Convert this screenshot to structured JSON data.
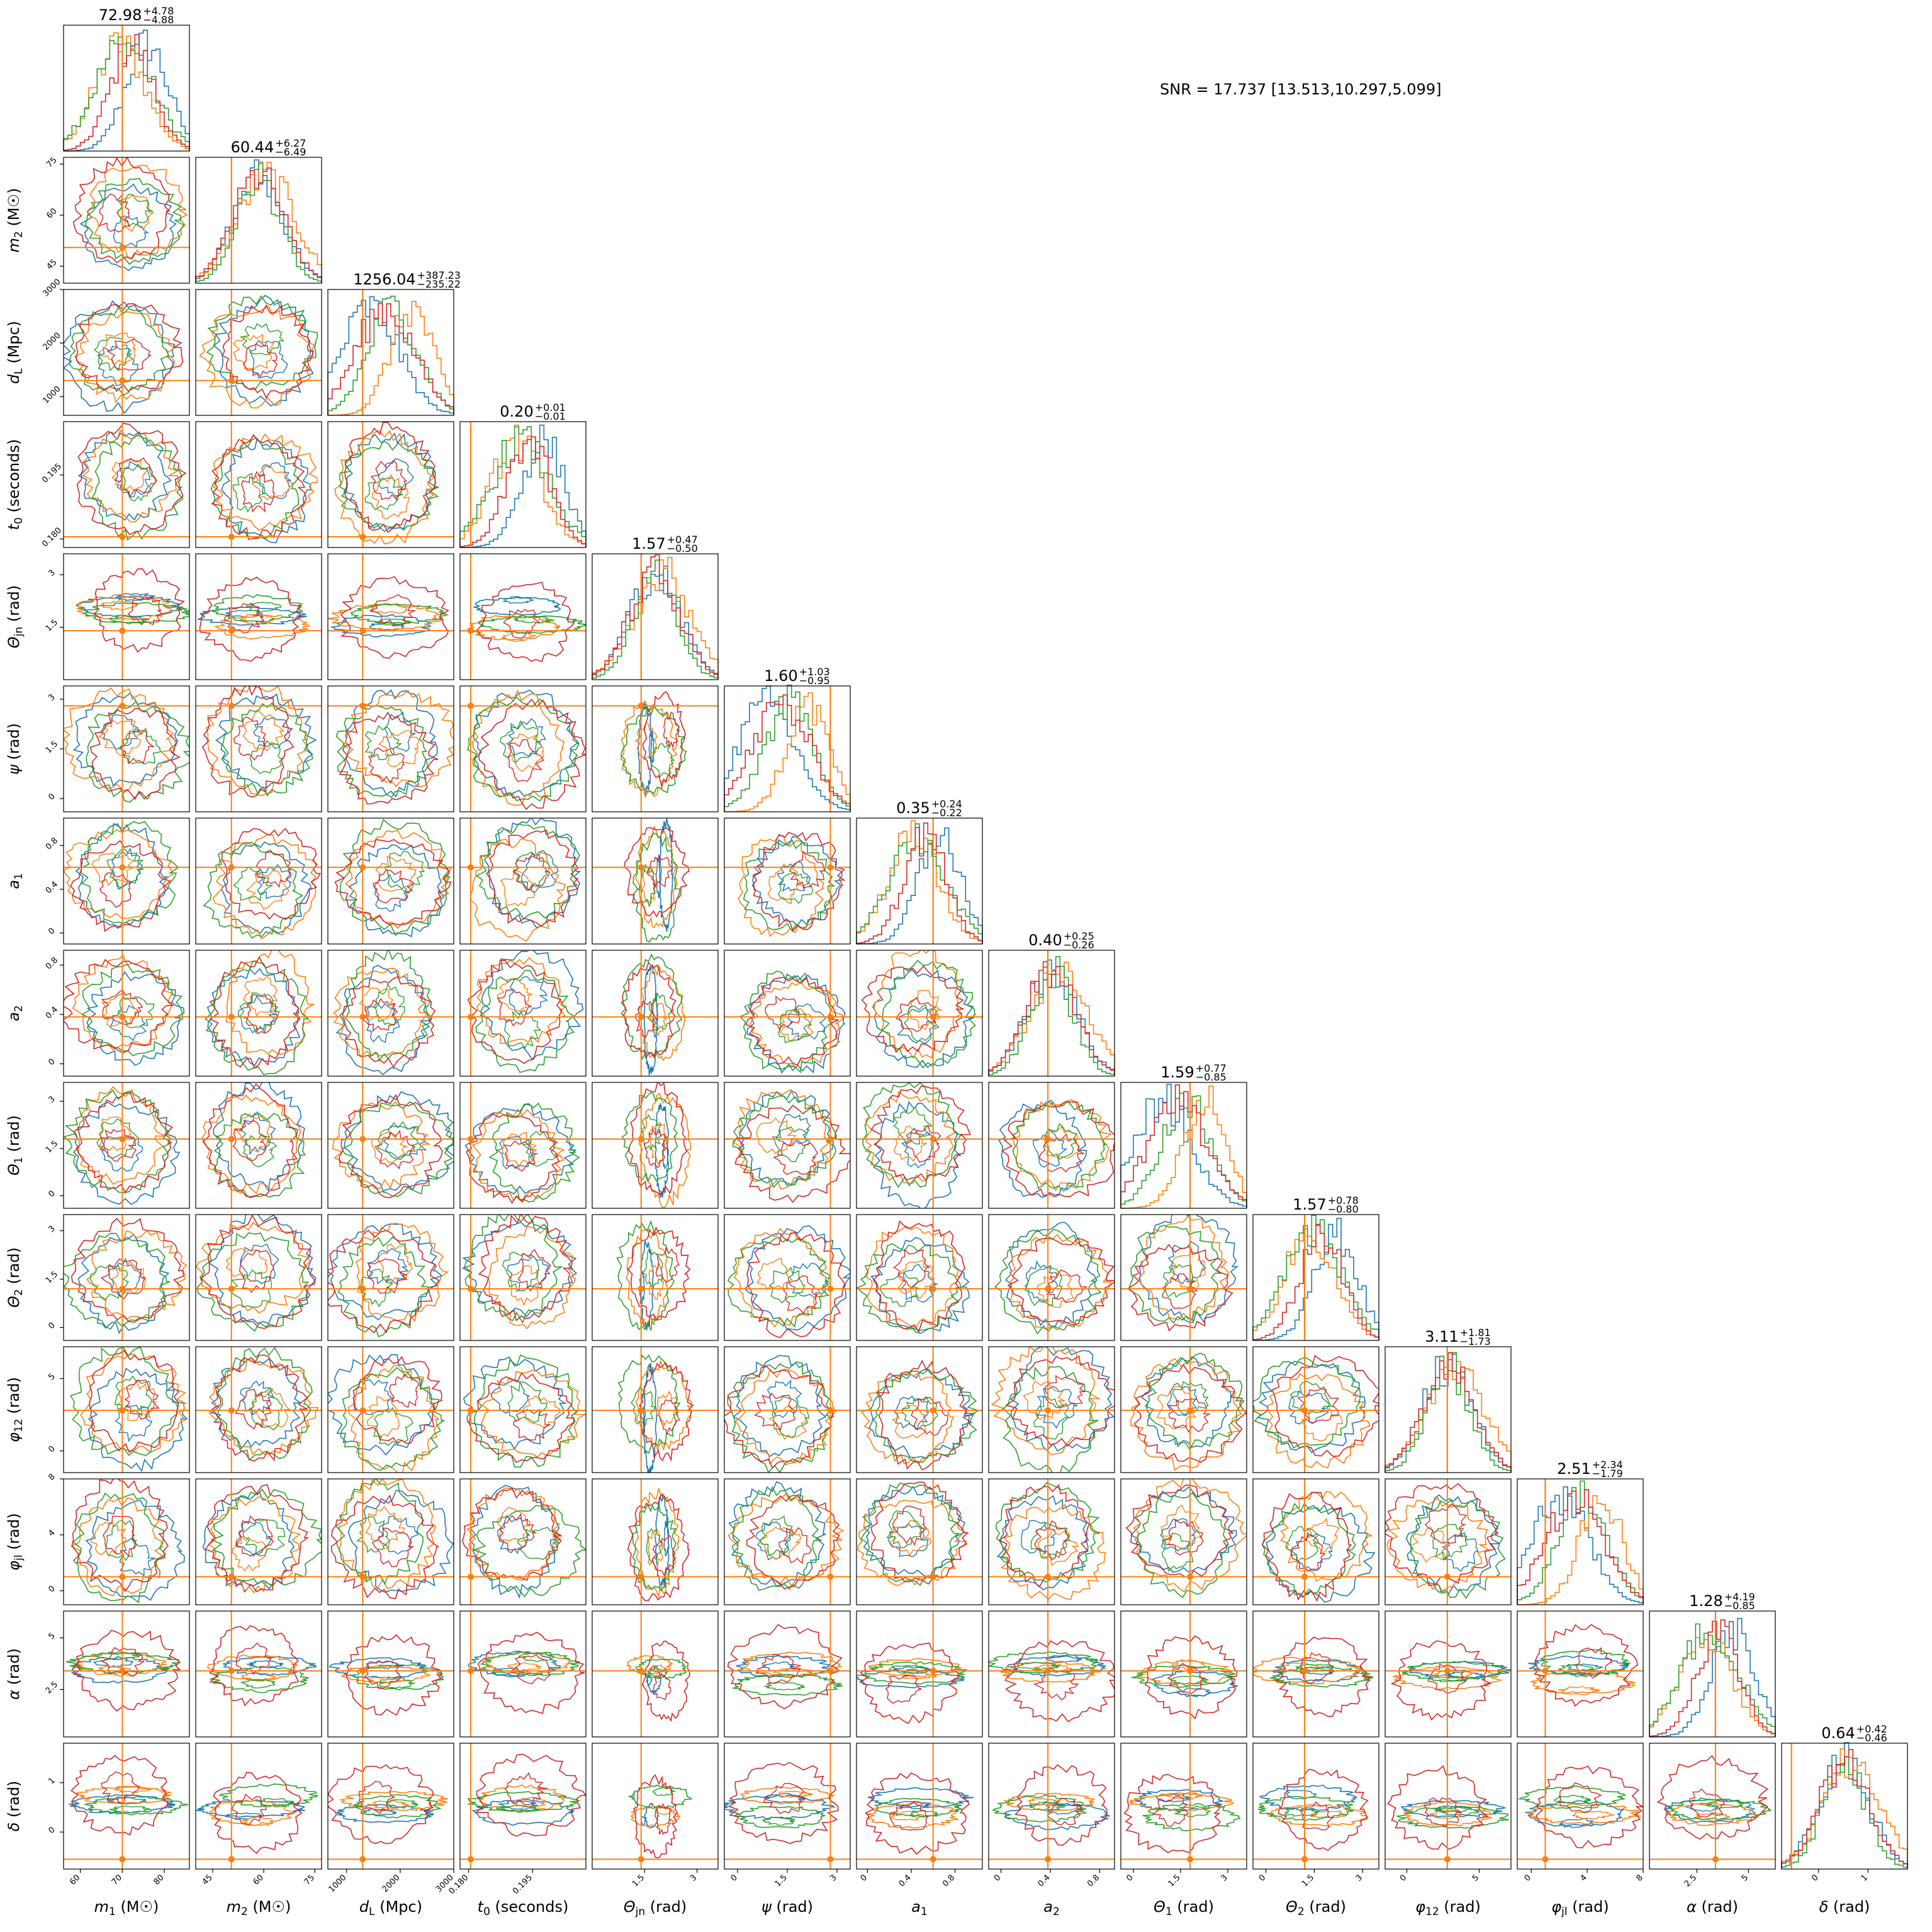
{
  "snr_text": "SNR = 17.737 [13.513,10.297,5.099]",
  "colors": {
    "blue": "#1f77b4",
    "orange": "#ff7f0e",
    "green": "#2ca02c",
    "red": "#d62728",
    "truth": "#ff7f0e"
  },
  "chart_data": {
    "type": "corner",
    "series_count": 4,
    "parameters": [
      {
        "label": "m₁ (M☉)",
        "symbol": "m",
        "sub": "1",
        "unit": "(M☉)",
        "range": [
          56,
          86
        ],
        "ticks": [
          60,
          70,
          80
        ],
        "truth": 70.0,
        "title": {
          "median": "72.98",
          "plus": "+4.78",
          "minus": "−4.88"
        }
      },
      {
        "label": "m₂ (M☉)",
        "symbol": "m",
        "sub": "2",
        "unit": "(M☉)",
        "range": [
          40,
          77
        ],
        "ticks": [
          45,
          60,
          75
        ],
        "truth": 50.5,
        "title": {
          "median": "60.44",
          "plus": "+6.27",
          "minus": "−6.49"
        }
      },
      {
        "label": "d_L (Mpc)",
        "symbol": "d",
        "sub": "L",
        "unit": "(Mpc)",
        "range": [
          650,
          3000
        ],
        "ticks": [
          1000,
          2000,
          3000
        ],
        "truth": 1300,
        "title": {
          "median": "1256.04",
          "plus": "+387.23",
          "minus": "−235.22"
        }
      },
      {
        "label": "t₀ (seconds)",
        "symbol": "t",
        "sub": "0",
        "unit": "(seconds)",
        "range": [
          0.178,
          0.2075
        ],
        "ticks": [
          0.18,
          0.195
        ],
        "tick_labels": [
          "0.180",
          "0.195"
        ],
        "truth": 0.1805,
        "title": {
          "median": "0.20",
          "plus": "+0.01",
          "minus": "−0.01"
        }
      },
      {
        "label": "Θ_jn (rad)",
        "symbol": "Θ",
        "sub": "jn",
        "unit": "(rad)",
        "range": [
          0,
          3.6
        ],
        "ticks": [
          1.5,
          3.0
        ],
        "truth": 1.4,
        "title": {
          "median": "1.57",
          "plus": "+0.47",
          "minus": "−0.50"
        }
      },
      {
        "label": "ψ (rad)",
        "symbol": "ψ",
        "sub": "",
        "unit": "(rad)",
        "range": [
          -0.4,
          3.4
        ],
        "ticks": [
          0.0,
          1.5,
          3.0
        ],
        "truth": 2.8,
        "title": {
          "median": "1.60",
          "plus": "+1.03",
          "minus": "−0.95"
        }
      },
      {
        "label": "a₁",
        "symbol": "a",
        "sub": "1",
        "unit": "",
        "range": [
          -0.1,
          1.05
        ],
        "ticks": [
          0.0,
          0.4,
          0.8
        ],
        "truth": 0.6,
        "title": {
          "median": "0.35",
          "plus": "+0.24",
          "minus": "−0.22"
        }
      },
      {
        "label": "a₂",
        "symbol": "a",
        "sub": "2",
        "unit": "",
        "range": [
          -0.1,
          0.92
        ],
        "ticks": [
          0.0,
          0.4,
          0.8
        ],
        "truth": 0.38,
        "title": {
          "median": "0.40",
          "plus": "+0.25",
          "minus": "−0.26"
        }
      },
      {
        "label": "Θ₁ (rad)",
        "symbol": "Θ",
        "sub": "1",
        "unit": "(rad)",
        "range": [
          -0.4,
          3.6
        ],
        "ticks": [
          0.0,
          1.5,
          3.0
        ],
        "truth": 1.8,
        "title": {
          "median": "1.59",
          "plus": "+0.77",
          "minus": "−0.85"
        }
      },
      {
        "label": "Θ₂ (rad)",
        "symbol": "Θ",
        "sub": "2",
        "unit": "(rad)",
        "range": [
          -0.4,
          3.5
        ],
        "ticks": [
          0.0,
          1.5,
          3.0
        ],
        "truth": 1.2,
        "title": {
          "median": "1.57",
          "plus": "+0.78",
          "minus": "−0.80"
        }
      },
      {
        "label": "φ₁₂ (rad)",
        "symbol": "φ",
        "sub": "12",
        "unit": "(rad)",
        "range": [
          -1.5,
          7.2
        ],
        "ticks": [
          0,
          5
        ],
        "truth": 2.8,
        "title": {
          "median": "3.11",
          "plus": "+1.81",
          "minus": "−1.73"
        }
      },
      {
        "label": "φ_jl (rad)",
        "symbol": "φ",
        "sub": "jl",
        "unit": "(rad)",
        "range": [
          -1.0,
          8.0
        ],
        "ticks": [
          0,
          4,
          8
        ],
        "truth": 1.0,
        "title": {
          "median": "2.51",
          "plus": "+2.34",
          "minus": "−1.79"
        }
      },
      {
        "label": "α (rad)",
        "symbol": "α",
        "sub": "",
        "unit": "(rad)",
        "range": [
          0.2,
          6.3
        ],
        "ticks": [
          2.5,
          5.0
        ],
        "truth": 3.4,
        "title": {
          "median": "1.28",
          "plus": "+4.19",
          "minus": "−0.85"
        }
      },
      {
        "label": "δ (rad)",
        "symbol": "δ",
        "sub": "",
        "unit": "(rad)",
        "range": [
          -0.75,
          1.8
        ],
        "ticks": [
          0,
          1
        ],
        "truth": -0.55,
        "title": {
          "median": "0.64",
          "plus": "+0.42",
          "minus": "−0.46"
        }
      }
    ]
  }
}
